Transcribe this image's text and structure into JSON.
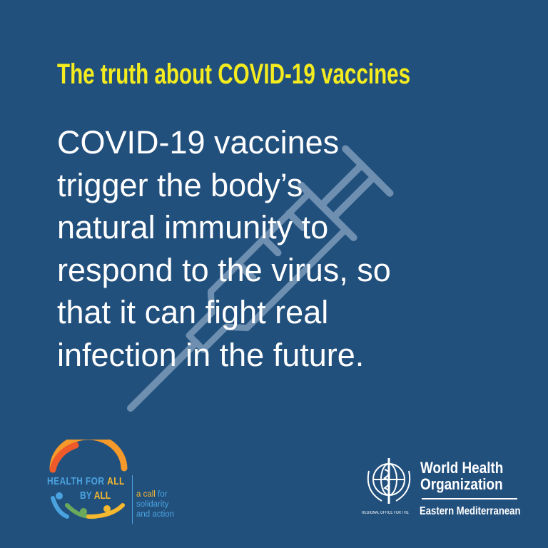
{
  "title": "The truth about COVID-19 vaccines",
  "body_lines": [
    "COVID-19 vaccines",
    "trigger the body’s",
    "natural immunity to",
    "respond to the virus, so",
    "that it can fight real",
    "infection in the future."
  ],
  "colors": {
    "background": "#22507d",
    "title": "#f4ec1f",
    "body": "#ffffff",
    "syringe": "#6e8fb0"
  },
  "icons": {
    "watermark": "syringe-icon"
  },
  "hfa_logo": {
    "title_part1": "HEALTH FOR ",
    "title_part2": "ALL",
    "by_part1": "BY ",
    "by_part2": "ALL",
    "tag_part1": "a call",
    "tag_part2": " for",
    "tag_line2": "solidarity",
    "tag_line3": "and action"
  },
  "who_logo": {
    "line1": "World Health",
    "line2": "Organization",
    "regional": "REGIONAL OFFICE FOR THE",
    "region": "Eastern Mediterranean"
  }
}
